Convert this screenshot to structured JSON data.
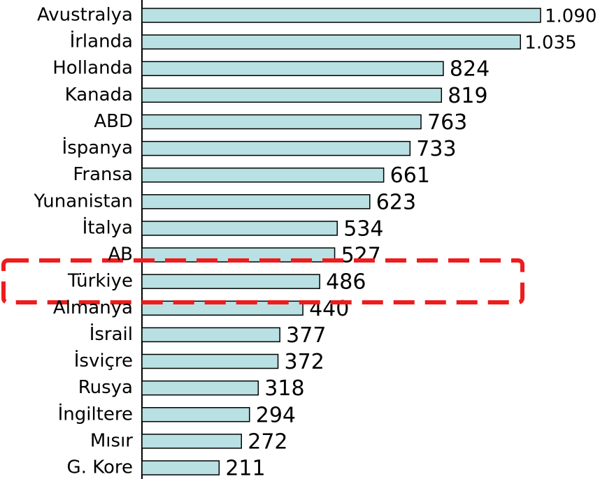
{
  "chart_data": {
    "type": "barh",
    "categories": [
      "Avustralya",
      "İrlanda",
      "Hollanda",
      "Kanada",
      "ABD",
      "İspanya",
      "Fransa",
      "Yunanistan",
      "İtalya",
      "AB",
      "Türkiye",
      "Almanya",
      "İsrail",
      "İsviçre",
      "Rusya",
      "İngiltere",
      "Mısır",
      "G. Kore"
    ],
    "values": [
      1090,
      1035,
      824,
      819,
      763,
      733,
      661,
      623,
      534,
      527,
      486,
      440,
      377,
      372,
      318,
      294,
      272,
      211
    ],
    "value_labels": [
      "1.090",
      "1.035",
      "824",
      "819",
      "763",
      "733",
      "661",
      "623",
      "534",
      "527",
      "486",
      "440",
      "377",
      "372",
      "318",
      "294",
      "272",
      "211"
    ],
    "color": "#b9e0e3",
    "xlim": [
      0,
      1090
    ]
  }
}
